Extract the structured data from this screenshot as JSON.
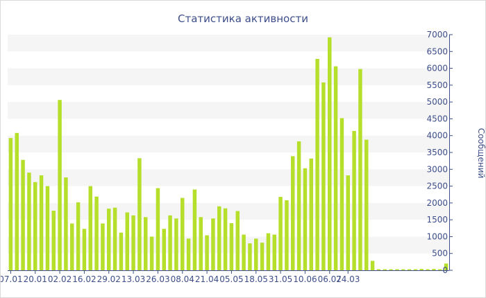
{
  "chart_data": {
    "type": "bar",
    "title": "Статистика активности",
    "ylabel": "Сообщений",
    "xlabel": "",
    "ylim": [
      0,
      7000
    ],
    "ytick_step": 500,
    "y_axis_side": "right",
    "grid": "alternating horizontal bands",
    "bar_color": "#b5df2a",
    "band_color": "#f5f5f5",
    "axis_color": "#3d4e8a",
    "x_tick_labels": [
      {
        "index": 0,
        "label": "07.01"
      },
      {
        "index": 4,
        "label": "20.01"
      },
      {
        "index": 8,
        "label": "02.02"
      },
      {
        "index": 12,
        "label": "16.02"
      },
      {
        "index": 16,
        "label": "29.02"
      },
      {
        "index": 20,
        "label": "13.03"
      },
      {
        "index": 24,
        "label": "26.03"
      },
      {
        "index": 28,
        "label": "08.04"
      },
      {
        "index": 32,
        "label": "21.04"
      },
      {
        "index": 36,
        "label": "05.05"
      },
      {
        "index": 40,
        "label": "18.05"
      },
      {
        "index": 44,
        "label": "31.05"
      },
      {
        "index": 48,
        "label": "10.06"
      },
      {
        "index": 52,
        "label": "06.07"
      },
      {
        "index": 55,
        "label": "24.03"
      }
    ],
    "values": [
      3930,
      4080,
      3280,
      2900,
      2620,
      2820,
      2500,
      1770,
      5060,
      2760,
      1390,
      2020,
      1230,
      2500,
      2190,
      1390,
      1830,
      1860,
      1120,
      1720,
      1630,
      3330,
      1580,
      1000,
      2440,
      1230,
      1630,
      1540,
      2150,
      940,
      2400,
      1580,
      1040,
      1540,
      1900,
      1840,
      1400,
      1760,
      1060,
      800,
      940,
      820,
      1100,
      1060,
      2180,
      2080,
      3390,
      3830,
      3030,
      3320,
      6280,
      5580,
      6920,
      6060,
      4520,
      2820,
      4140,
      5980,
      3880,
      280,
      30,
      30,
      30,
      30,
      30,
      30,
      30,
      40,
      30,
      40,
      30,
      200
    ]
  }
}
